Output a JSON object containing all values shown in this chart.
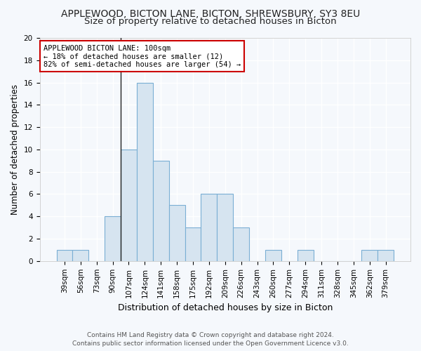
{
  "title1": "APPLEWOOD, BICTON LANE, BICTON, SHREWSBURY, SY3 8EU",
  "title2": "Size of property relative to detached houses in Bicton",
  "xlabel": "Distribution of detached houses by size in Bicton",
  "ylabel": "Number of detached properties",
  "categories": [
    "39sqm",
    "56sqm",
    "73sqm",
    "90sqm",
    "107sqm",
    "124sqm",
    "141sqm",
    "158sqm",
    "175sqm",
    "192sqm",
    "209sqm",
    "226sqm",
    "243sqm",
    "260sqm",
    "277sqm",
    "294sqm",
    "311sqm",
    "328sqm",
    "345sqm",
    "362sqm",
    "379sqm"
  ],
  "values": [
    1,
    1,
    0,
    4,
    10,
    16,
    9,
    5,
    3,
    6,
    6,
    3,
    0,
    1,
    0,
    1,
    0,
    0,
    0,
    1,
    1
  ],
  "bar_color": "#d6e4f0",
  "bar_edge_color": "#7aaed4",
  "annotation_line1": "APPLEWOOD BICTON LANE: 100sqm",
  "annotation_line2": "← 18% of detached houses are smaller (12)",
  "annotation_line3": "82% of semi-detached houses are larger (54) →",
  "annotation_box_color": "white",
  "annotation_box_edge_color": "#cc0000",
  "property_line_index": 4,
  "ylim": [
    0,
    20
  ],
  "yticks": [
    0,
    2,
    4,
    6,
    8,
    10,
    12,
    14,
    16,
    18,
    20
  ],
  "footer1": "Contains HM Land Registry data © Crown copyright and database right 2024.",
  "footer2": "Contains public sector information licensed under the Open Government Licence v3.0.",
  "bg_color": "#f5f8fc",
  "grid_color": "white",
  "title1_fontsize": 10,
  "title2_fontsize": 9.5,
  "xlabel_fontsize": 9,
  "ylabel_fontsize": 8.5,
  "footer_fontsize": 6.5,
  "annotation_fontsize": 7.5,
  "tick_fontsize": 7.5
}
